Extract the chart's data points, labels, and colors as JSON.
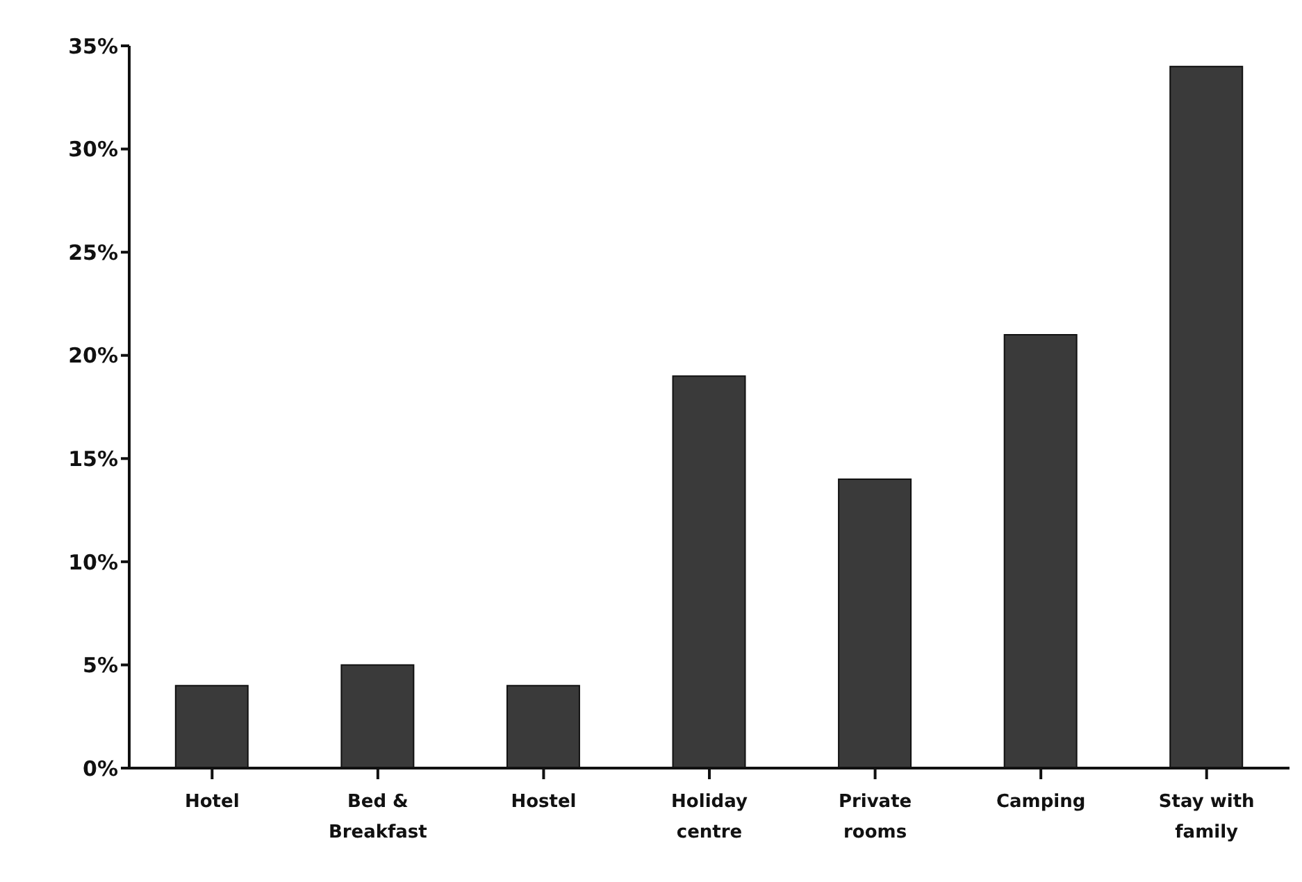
{
  "chart_data": {
    "type": "bar",
    "categories": [
      "Hotel",
      "Bed & Breakfast",
      "Hostel",
      "Holiday centre",
      "Private rooms",
      "Camping",
      "Stay with family"
    ],
    "values": [
      4,
      5,
      4,
      19,
      14,
      21,
      34
    ],
    "color": "#3a3a3a",
    "ylim": [
      0,
      35
    ],
    "yticks": [
      {
        "value": 0,
        "label": "0%"
      },
      {
        "value": 5,
        "label": "5%"
      },
      {
        "value": 10,
        "label": "10%"
      },
      {
        "value": 15,
        "label": "15%"
      },
      {
        "value": 20,
        "label": "20%"
      },
      {
        "value": 25,
        "label": "25%"
      },
      {
        "value": 30,
        "label": "30%"
      },
      {
        "value": 35,
        "label": "35%"
      }
    ],
    "grid": false,
    "legend": false
  }
}
